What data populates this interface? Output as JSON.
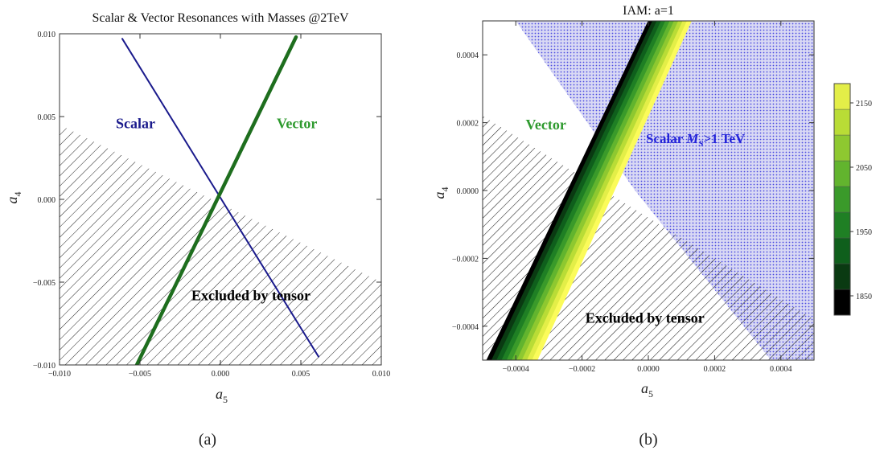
{
  "chart_data": [
    {
      "type": "line",
      "panel_label": "(a)",
      "title": "Scalar & Vector Resonances with Masses @2TeV",
      "xlabel": "a",
      "xlabel_sub": "5",
      "ylabel": "a",
      "ylabel_sub": "4",
      "xlim": [
        -0.01,
        0.01
      ],
      "ylim": [
        -0.01,
        0.01
      ],
      "x_ticks": [
        -0.01,
        -0.005,
        0.0,
        0.005,
        0.01
      ],
      "x_tick_labels": [
        "−0.010",
        "−0.005",
        "0.000",
        "0.005",
        "0.010"
      ],
      "y_ticks": [
        -0.01,
        -0.005,
        0.0,
        0.005,
        0.01
      ],
      "y_tick_labels": [
        "−0.010",
        "−0.005",
        "0.000",
        "0.005",
        "0.010"
      ],
      "series": [
        {
          "name": "Scalar",
          "color": "#1a1a8c",
          "x": [
            -0.0061,
            0.0061
          ],
          "y": [
            0.0097,
            -0.0095
          ]
        },
        {
          "name": "Vector",
          "color": "#1e6e1e",
          "x": [
            -0.0052,
            0.0047
          ],
          "y": [
            -0.01,
            0.0098
          ]
        }
      ],
      "excluded_region": {
        "label": "Excluded by tensor",
        "boundary_x": [
          -0.01,
          0.01
        ],
        "boundary_y": [
          0.0045,
          -0.005
        ]
      },
      "annotations": [
        {
          "text": "Scalar",
          "color": "#1a1a8c",
          "x": -0.0065,
          "y": 0.0043
        },
        {
          "text": "Vector",
          "color": "#2e9a2e",
          "x": 0.0035,
          "y": 0.0043
        },
        {
          "text": "Excluded by tensor",
          "color": "#000000",
          "x": -0.0018,
          "y": -0.0061
        }
      ]
    },
    {
      "type": "heatmap",
      "panel_label": "(b)",
      "title": "IAM: a=1",
      "xlabel": "a",
      "xlabel_sub": "5",
      "ylabel": "a",
      "ylabel_sub": "4",
      "xlim": [
        -0.0005,
        0.0005
      ],
      "ylim": [
        -0.0005,
        0.0005
      ],
      "x_ticks": [
        -0.0004,
        -0.0002,
        0.0,
        0.0002,
        0.0004
      ],
      "x_tick_labels": [
        "−0.0004",
        "−0.0002",
        "0.0000",
        "0.0002",
        "0.0004"
      ],
      "y_ticks": [
        -0.0004,
        -0.0002,
        0.0,
        0.0002,
        0.0004
      ],
      "y_tick_labels": [
        "−0.0004",
        "−0.0002",
        "0.0000",
        "0.0002",
        "0.0004"
      ],
      "vector_band": {
        "left_edge_x": [
          -0.000488,
          0.0
        ],
        "right_edge_x": [
          -0.000335,
          0.00013
        ],
        "y": [
          -0.0005,
          0.0005
        ]
      },
      "scalar_region": {
        "label": "Scalar",
        "label_mass": "M",
        "label_mass_sub": "S",
        "label_rest": ">1 TeV",
        "color": "#2323d9",
        "boundary_left_x": [
          -0.0004,
          -4e-05
        ],
        "boundary_left_y": [
          0.0005,
          0.0
        ],
        "boundary_bottom_x": [
          -4e-05,
          0.00037
        ],
        "boundary_bottom_y": [
          0.0,
          -0.0005
        ]
      },
      "excluded_region": {
        "label": "Excluded by tensor",
        "boundary_x": [
          -0.0005,
          0.0005
        ],
        "boundary_y": [
          0.00022,
          -0.00038
        ]
      },
      "annotations": [
        {
          "text": "Vector",
          "color": "#2e9a2e",
          "x": -0.00037,
          "y": 0.00018
        },
        {
          "text": "Excluded by tensor",
          "color": "#000000",
          "x": -0.00019,
          "y": -0.00039
        }
      ],
      "colorbar": {
        "range": [
          1820,
          2180
        ],
        "tick_values": [
          1850,
          1950,
          2050,
          2150
        ],
        "tick_labels": [
          "1850",
          "1950",
          "2050",
          "2150"
        ],
        "levels": [
          1820,
          1860,
          1900,
          1940,
          1980,
          2020,
          2060,
          2100,
          2140,
          2180
        ],
        "colors": [
          "#000000",
          "#0a3a12",
          "#0f5f1c",
          "#1f7f24",
          "#3a9a2a",
          "#62b42e",
          "#8ec830",
          "#b9dc36",
          "#e3ee48",
          "#fbfb5a"
        ]
      }
    }
  ]
}
